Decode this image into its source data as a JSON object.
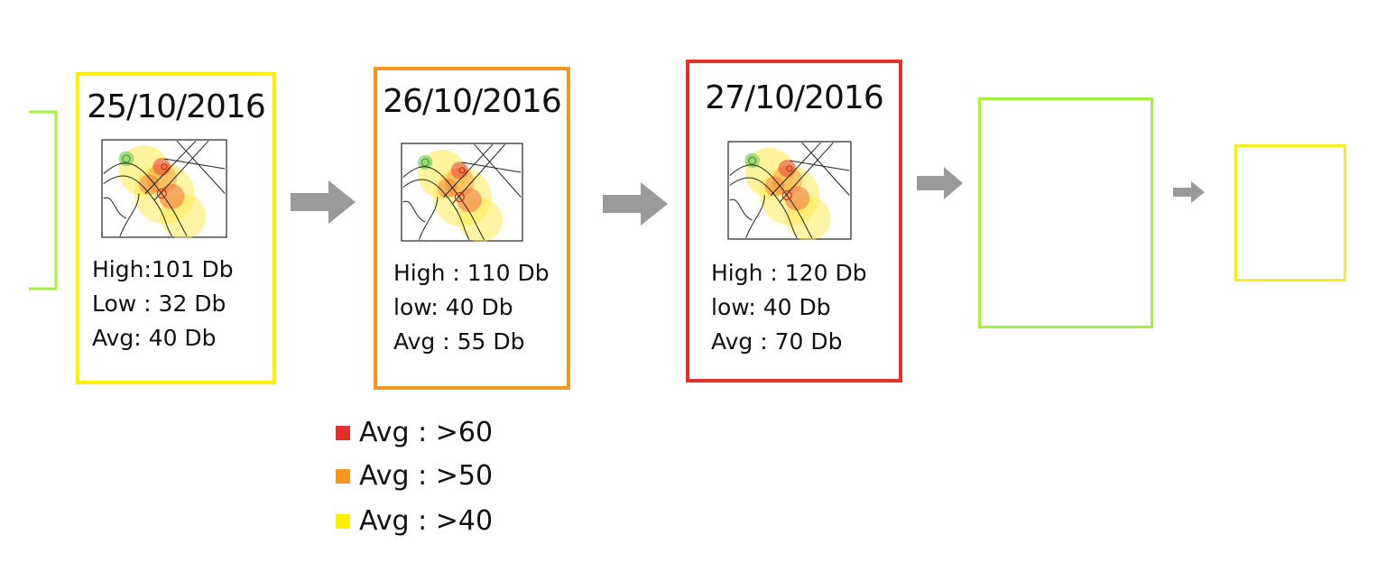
{
  "colors": {
    "card1": "#ffef00",
    "card2": "#f7961e",
    "card3": "#e0322a",
    "placeholder_green": "#a6f040",
    "placeholder_yellow": "#f4f020",
    "arrow": "#9a9a9a"
  },
  "cards": [
    {
      "date": "25/10/2016",
      "high": "High:101 Db",
      "low": "Low : 32 Db",
      "avg": "Avg: 40 Db"
    },
    {
      "date": "26/10/2016",
      "high": "High : 110 Db",
      "low": "low: 40 Db",
      "avg": "Avg : 55 Db"
    },
    {
      "date": "27/10/2016",
      "high": "High : 120 Db",
      "low": "low: 40 Db",
      "avg": "Avg : 70 Db"
    }
  ],
  "legend": [
    {
      "label": "Avg : >60",
      "color": "#e0322a"
    },
    {
      "label": "Avg : >50",
      "color": "#f7961e"
    },
    {
      "label": "Avg : >40",
      "color": "#ffef00"
    }
  ]
}
